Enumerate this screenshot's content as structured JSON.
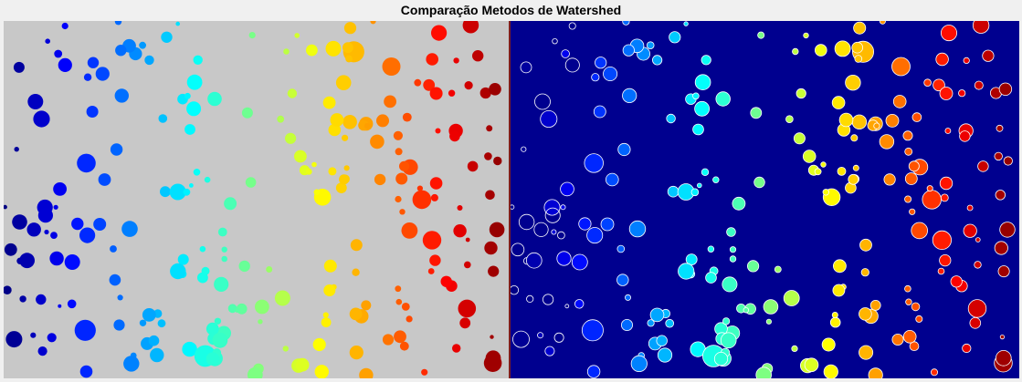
{
  "window": {
    "title": "Comparação Metodos de Watershed"
  },
  "panels": {
    "left": {
      "background": "#c8c8c8",
      "outline": "none"
    },
    "right": {
      "background": "#00008f",
      "outline": "#ffffff"
    }
  },
  "colormap": "jet"
}
